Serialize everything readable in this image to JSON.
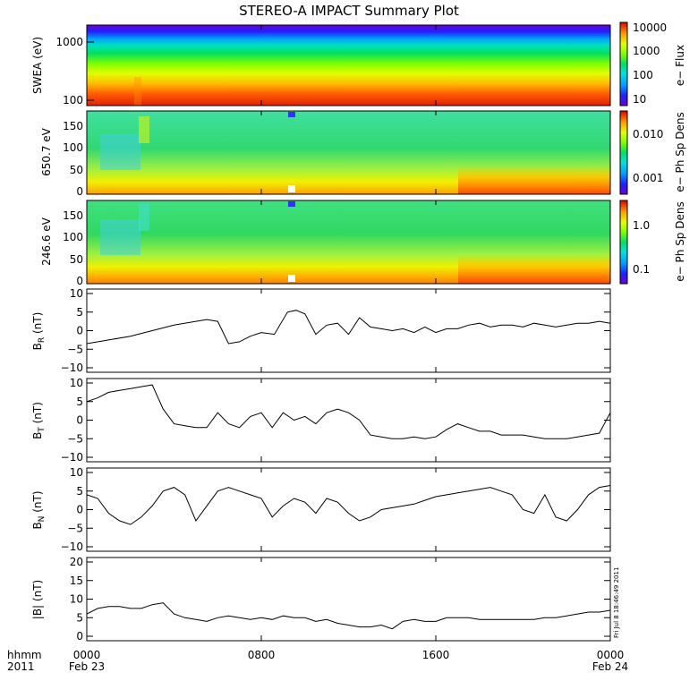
{
  "title": "STEREO-A IMPACT Summary Plot",
  "footer": {
    "left_top": "hhmm",
    "left_bottom": "2011",
    "timestamp": "Fri Jul  8 18:46:49 2011"
  },
  "time_axis": {
    "ticks": [
      {
        "t": 0,
        "top": "0000",
        "bottom": "Feb 23"
      },
      {
        "t": 8,
        "top": "0800",
        "bottom": ""
      },
      {
        "t": 16,
        "top": "1600",
        "bottom": ""
      },
      {
        "t": 24,
        "top": "0000",
        "bottom": "Feb 24"
      }
    ],
    "range_hours": [
      0,
      24
    ]
  },
  "colors": {
    "rainbow": [
      "#6a00d8",
      "#2020ff",
      "#00a0ff",
      "#00e0e0",
      "#00e060",
      "#80ff00",
      "#e0ff00",
      "#ffc000",
      "#ff6000",
      "#e00000"
    ],
    "line": "#000000",
    "axis": "#000000"
  },
  "panels": {
    "swea": {
      "ylabel": "SWEA (eV)",
      "yticks": [
        "1000",
        "100"
      ],
      "colorbar_label": "e− Flux",
      "colorbar_ticks": [
        "10000",
        "1000",
        "100",
        "10"
      ]
    },
    "pad650": {
      "ylabel": "650.7 eV",
      "yticks": [
        "0",
        "50",
        "100",
        "150"
      ],
      "colorbar_label": "e− Ph Sp Dens",
      "colorbar_ticks": [
        "0.010",
        "0.001"
      ]
    },
    "pad246": {
      "ylabel": "246.6 eV",
      "yticks": [
        "0",
        "50",
        "100",
        "150"
      ],
      "colorbar_label": "e− Ph Sp Dens",
      "colorbar_ticks": [
        "1.0",
        "0.1"
      ]
    },
    "br": {
      "ylabel": "B",
      "sub": "R",
      "unit": " (nT)",
      "yticks": [
        "−10",
        "−5",
        "0",
        "5",
        "10"
      ]
    },
    "bt": {
      "ylabel": "B",
      "sub": "T",
      "unit": " (nT)",
      "yticks": [
        "−10",
        "−5",
        "0",
        "5",
        "10"
      ]
    },
    "bn": {
      "ylabel": "B",
      "sub": "N",
      "unit": " (nT)",
      "yticks": [
        "−10",
        "−5",
        "0",
        "5",
        "10"
      ]
    },
    "bmag": {
      "ylabel": "|B| (nT)",
      "yticks": [
        "0",
        "5",
        "10",
        "15",
        "20"
      ]
    }
  },
  "chart_data": [
    {
      "type": "heatmap",
      "name": "SWEA (eV)",
      "ylabel": "SWEA (eV)",
      "y_scale": "log",
      "ylim": [
        95,
        2000
      ],
      "colorbar": {
        "label": "e− Flux",
        "scale": "log",
        "range": [
          5,
          20000
        ],
        "ticks": [
          10,
          100,
          1000,
          10000
        ]
      },
      "note_bands": [
        {
          "energy_ev": 1600,
          "level": 10
        },
        {
          "energy_ev": 1000,
          "level": 300
        },
        {
          "energy_ev": 500,
          "level": 800
        },
        {
          "energy_ev": 250,
          "level": 2500
        },
        {
          "energy_ev": 120,
          "level": 10000
        }
      ]
    },
    {
      "type": "heatmap",
      "name": "650.7 eV",
      "ylabel": "650.7 eV",
      "ylim": [
        0,
        180
      ],
      "colorbar": {
        "label": "e− Ph Sp Dens",
        "scale": "log",
        "ticks": [
          0.001,
          0.01
        ]
      }
    },
    {
      "type": "heatmap",
      "name": "246.6 eV",
      "ylabel": "246.6 eV",
      "ylim": [
        0,
        180
      ],
      "colorbar": {
        "label": "e− Ph Sp Dens",
        "scale": "log",
        "ticks": [
          0.1,
          1.0
        ]
      }
    },
    {
      "type": "line",
      "ylabel": "BR (nT)",
      "ylim": [
        -10,
        10
      ],
      "x": [
        0,
        1,
        2,
        3,
        4,
        5,
        5.5,
        6,
        6.5,
        7,
        7.5,
        8,
        8.6,
        9.2,
        9.6,
        10,
        10.5,
        11,
        11.5,
        12,
        12.5,
        13,
        13.5,
        14,
        14.5,
        15,
        15.5,
        16,
        16.5,
        17,
        17.5,
        18,
        18.5,
        19,
        19.5,
        20,
        20.5,
        21,
        21.5,
        22,
        22.5,
        23,
        23.5,
        24
      ],
      "values": [
        -3.5,
        -2.5,
        -1.5,
        0,
        1.5,
        2.5,
        3,
        2.5,
        -3.5,
        -3,
        -1.5,
        -0.5,
        -1,
        5,
        5.5,
        4.5,
        -1,
        1.5,
        2,
        -1,
        3.5,
        1,
        0.5,
        0,
        0.5,
        -0.5,
        1,
        -0.5,
        0.5,
        0.5,
        1.5,
        2,
        1,
        1.5,
        1.5,
        1,
        2,
        1.5,
        1,
        1.5,
        2,
        2,
        2.5,
        2
      ]
    },
    {
      "type": "line",
      "ylabel": "BT (nT)",
      "ylim": [
        -10,
        10
      ],
      "x": [
        0,
        0.5,
        1,
        1.5,
        2,
        2.5,
        3,
        3.5,
        4,
        4.5,
        5,
        5.5,
        6,
        6.5,
        7,
        7.5,
        8,
        8.5,
        9,
        9.5,
        10,
        10.5,
        11,
        11.5,
        12,
        12.5,
        13,
        13.5,
        14,
        14.5,
        15,
        15.5,
        16,
        16.5,
        17,
        17.5,
        18,
        18.5,
        19,
        19.5,
        20,
        20.5,
        21,
        21.5,
        22,
        22.5,
        23,
        23.5,
        24
      ],
      "values": [
        5,
        6,
        7.5,
        8,
        8.5,
        9,
        9.5,
        3,
        -1,
        -1.5,
        -2,
        -2,
        2,
        -1,
        -2,
        1,
        2,
        -2,
        2,
        0,
        1,
        -1,
        2,
        3,
        2,
        0,
        -4,
        -4.5,
        -5,
        -5,
        -4.5,
        -5,
        -4.5,
        -2.5,
        -1,
        -2,
        -3,
        -3,
        -4,
        -4,
        -4,
        -4.5,
        -5,
        -5,
        -5,
        -4.5,
        -4,
        -3.5,
        2
      ]
    },
    {
      "type": "line",
      "ylabel": "BN (nT)",
      "ylim": [
        -10,
        10
      ],
      "x": [
        0,
        0.5,
        1,
        1.5,
        2,
        2.5,
        3,
        3.5,
        4,
        4.5,
        5,
        5.5,
        6,
        6.5,
        7,
        7.5,
        8,
        8.5,
        9,
        9.5,
        10,
        10.5,
        11,
        11.5,
        12,
        12.5,
        13,
        13.5,
        14,
        14.5,
        15,
        15.5,
        16,
        16.5,
        17,
        17.5,
        18,
        18.5,
        19,
        19.5,
        20,
        20.5,
        21,
        21.5,
        22,
        22.5,
        23,
        23.5,
        24
      ],
      "values": [
        4,
        3,
        -1,
        -3,
        -4,
        -2,
        1,
        5,
        6,
        4,
        -3,
        1,
        5,
        6,
        5,
        4,
        3,
        -2,
        1,
        3,
        2,
        -1,
        3,
        2,
        -1,
        -3,
        -2,
        0,
        0.5,
        1,
        1.5,
        2.5,
        3.5,
        4,
        4.5,
        5,
        5.5,
        6,
        5,
        4,
        0,
        -1,
        4,
        -2,
        -3,
        0,
        4,
        6,
        6.5
      ]
    },
    {
      "type": "line",
      "ylabel": "|B| (nT)",
      "ylim": [
        0,
        20
      ],
      "x": [
        0,
        0.5,
        1,
        1.5,
        2,
        2.5,
        3,
        3.5,
        4,
        4.5,
        5,
        5.5,
        6,
        6.5,
        7,
        7.5,
        8,
        8.5,
        9,
        9.5,
        10,
        10.5,
        11,
        11.5,
        12,
        12.5,
        13,
        13.5,
        14,
        14.5,
        15,
        15.5,
        16,
        16.5,
        17,
        17.5,
        18,
        18.5,
        19,
        19.5,
        20,
        20.5,
        21,
        21.5,
        22,
        22.5,
        23,
        23.5,
        24
      ],
      "values": [
        6,
        7.5,
        8,
        8,
        7.5,
        7.5,
        8.5,
        9,
        6,
        5,
        4.5,
        4,
        5,
        5.5,
        5,
        4.5,
        5,
        4.5,
        5.5,
        5,
        5,
        4,
        4.5,
        3.5,
        3,
        2.5,
        2.5,
        3,
        2,
        4,
        4.5,
        4,
        4,
        5,
        5,
        5,
        4.5,
        4.5,
        4.5,
        4.5,
        4.5,
        4.5,
        5,
        5,
        5.5,
        6,
        6.5,
        6.5,
        7
      ]
    }
  ]
}
